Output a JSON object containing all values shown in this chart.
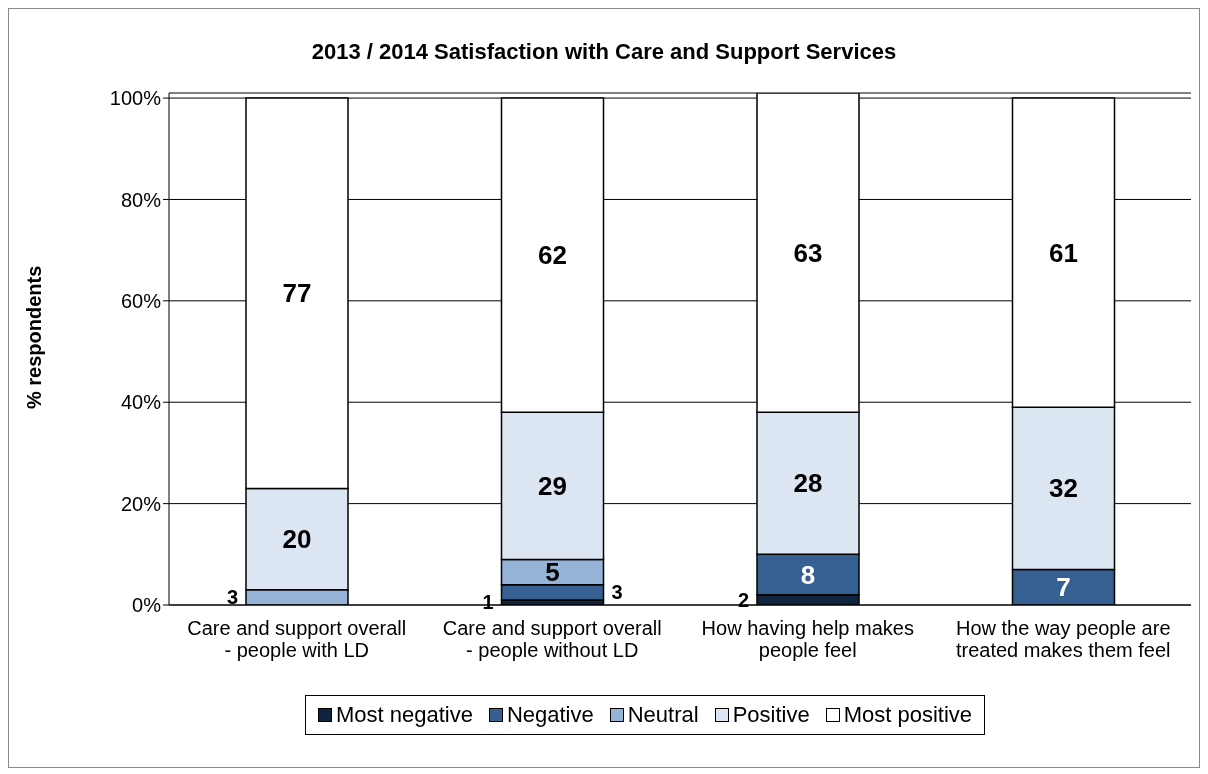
{
  "chart_data": {
    "type": "bar",
    "title": "2013 / 2014 Satisfaction with Care and Support Services",
    "ylabel": "% respondents",
    "categories": [
      "Care and support overall - people with LD",
      "Care and support overall - people without LD",
      "How having help makes people feel",
      "How the way people are treated makes them feel"
    ],
    "stacked": true,
    "series": [
      {
        "name": "Most negative",
        "color": "#10243f",
        "values": [
          0,
          1,
          2,
          0
        ],
        "value_labels": [
          null,
          "1",
          "2",
          null
        ]
      },
      {
        "name": "Negative",
        "color": "#376092",
        "values": [
          0,
          3,
          8,
          7
        ],
        "value_labels": [
          null,
          "3",
          "8",
          "7"
        ]
      },
      {
        "name": "Neutral",
        "color": "#95b3d7",
        "values": [
          3,
          5,
          0,
          0
        ],
        "value_labels": [
          "3",
          "5",
          null,
          null
        ]
      },
      {
        "name": "Positive",
        "color": "#dce6f2",
        "values": [
          20,
          29,
          28,
          32
        ],
        "value_labels": [
          "20",
          "29",
          "28",
          "32"
        ]
      },
      {
        "name": "Most positive",
        "color": "#ffffff",
        "values": [
          77,
          62,
          63,
          61
        ],
        "value_labels": [
          "77",
          "62",
          "63",
          "61"
        ]
      }
    ],
    "ylim": [
      0,
      101
    ],
    "yticks": [
      {
        "value": 0,
        "label": "0%"
      },
      {
        "value": 20,
        "label": "20%"
      },
      {
        "value": 40,
        "label": "40%"
      },
      {
        "value": 60,
        "label": "60%"
      },
      {
        "value": 80,
        "label": "80%"
      },
      {
        "value": 100,
        "label": "100%"
      }
    ],
    "grid": "y",
    "legend": "bottom"
  }
}
